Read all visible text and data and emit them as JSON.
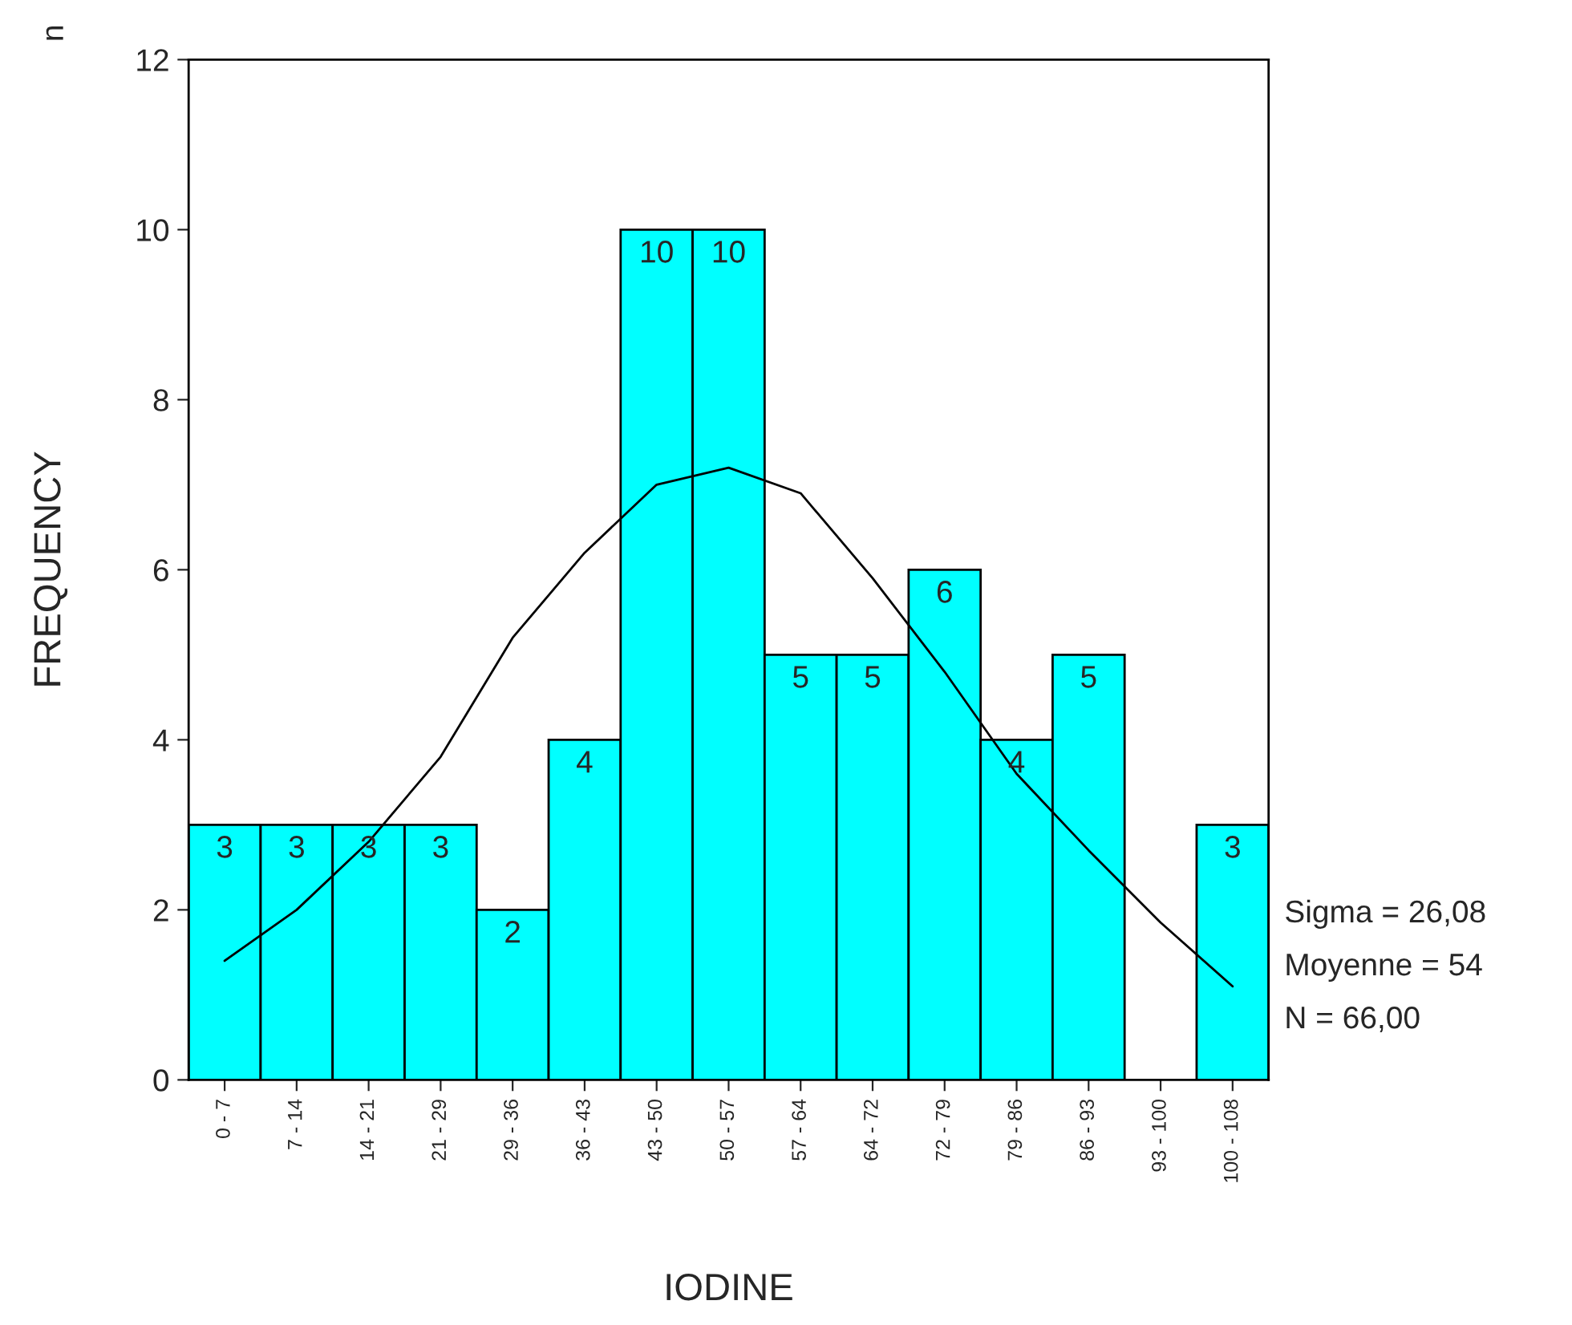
{
  "chart_data": {
    "type": "bar",
    "xlabel": "IODINE",
    "ylabel": "FREQUENCY",
    "categories": [
      "0 - 7",
      "7 - 14",
      "14 - 21",
      "21 - 29",
      "29 - 36",
      "36 - 43",
      "43 - 50",
      "50 - 57",
      "57 - 64",
      "64 - 72",
      "72 - 79",
      "79 - 86",
      "86 - 93",
      "93 - 100",
      "100 - 108"
    ],
    "series": [
      {
        "color": "#00ffff",
        "values": [
          3,
          3,
          3,
          3,
          2,
          4,
          10,
          10,
          5,
          5,
          6,
          4,
          5,
          0,
          3
        ],
        "value_labels": [
          "3",
          "3",
          "3",
          "3",
          "2",
          "4",
          "10",
          "10",
          "5",
          "5",
          "6",
          "4",
          "5",
          null,
          "3"
        ]
      },
      {
        "type": "line",
        "color": "#000000",
        "values": [
          1.4,
          2.0,
          2.8,
          3.8,
          5.2,
          6.2,
          7.0,
          7.2,
          6.9,
          5.9,
          4.8,
          3.6,
          2.7,
          1.85,
          1.1
        ]
      }
    ],
    "ylim": [
      0,
      12
    ],
    "yticks": [
      0,
      2,
      4,
      6,
      8,
      10,
      12
    ],
    "grid": false,
    "legend": false,
    "marker": "none",
    "line_style": "solid",
    "annotations": [
      "n",
      "Sigma = 26,08",
      "Moyenne = 54",
      "N = 66,00"
    ]
  }
}
